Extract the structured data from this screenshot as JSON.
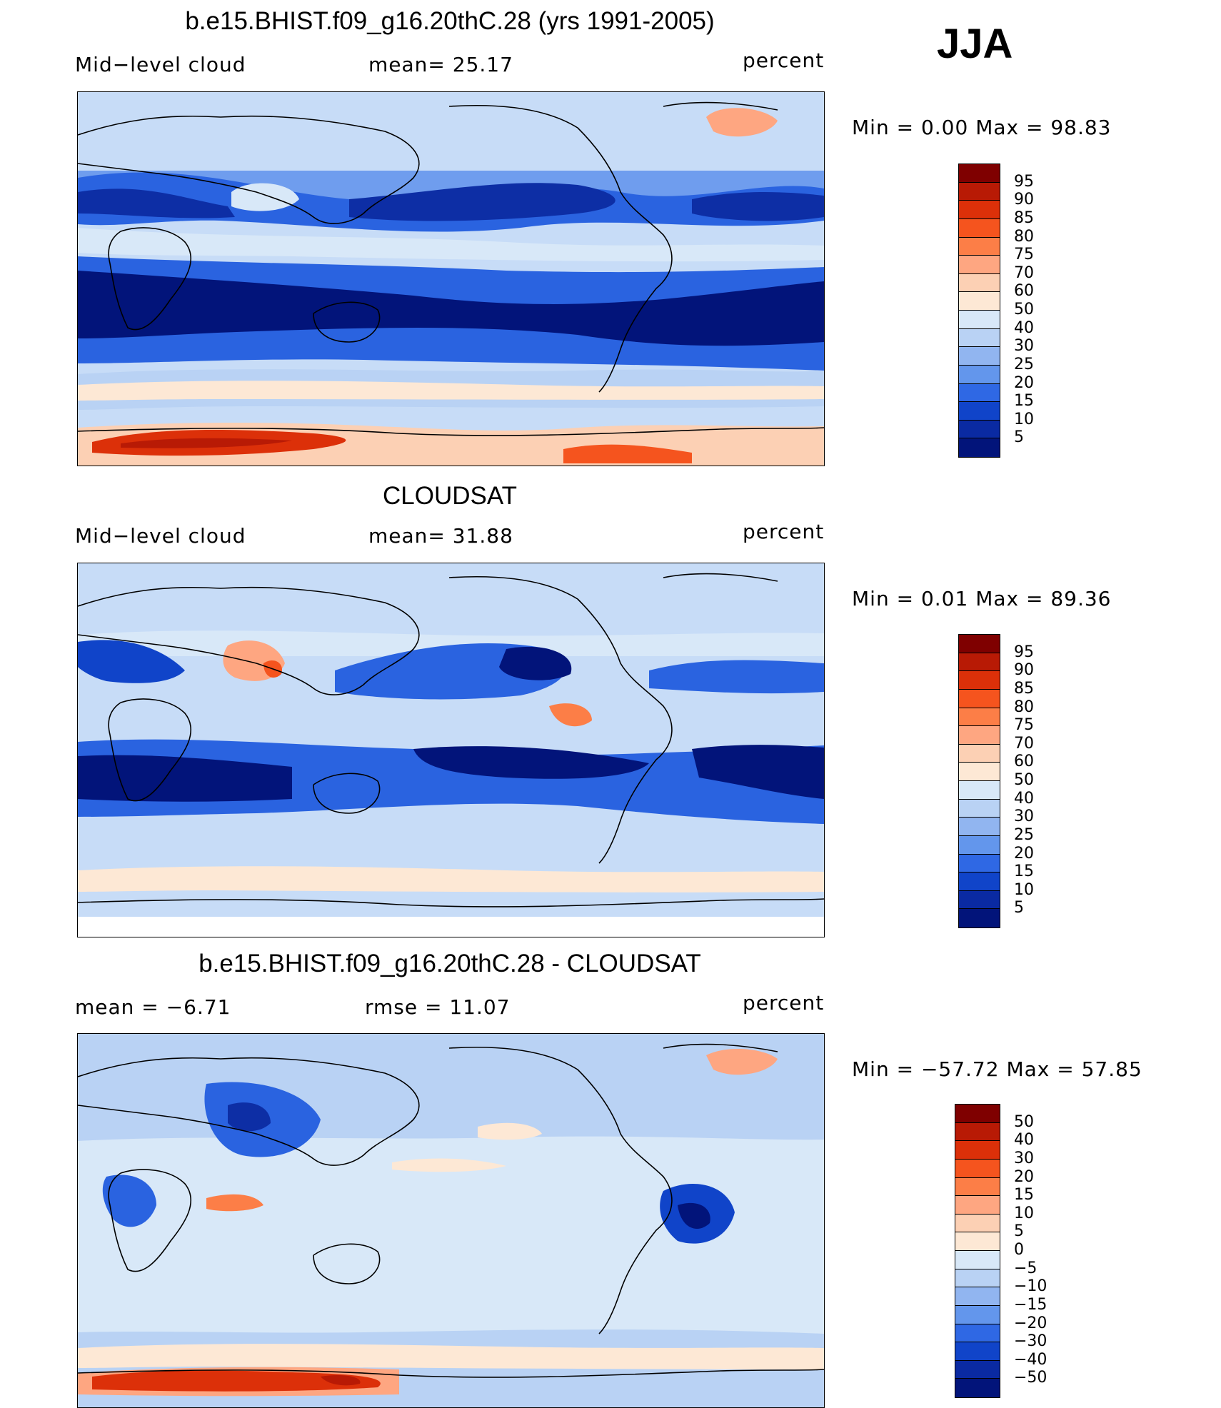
{
  "season": "JJA",
  "panels": [
    {
      "title": "b.e15.BHIST.f09_g16.20thC.28 (yrs 1991-2005)",
      "left_label": "Mid−level cloud",
      "center_label": "mean=   25.17",
      "right_label": "percent",
      "min_max": "Min  =    0.00  Max  =    98.83",
      "colorbar": {
        "levels": [
          "95",
          "90",
          "85",
          "80",
          "75",
          "70",
          "60",
          "50",
          "40",
          "30",
          "25",
          "20",
          "15",
          "10",
          "5"
        ],
        "colors": [
          "#7f0000",
          "#b81a05",
          "#dc3009",
          "#f5541e",
          "#fc7e47",
          "#fea681",
          "#fcd0b4",
          "#fde8d5",
          "#d8e8f8",
          "#b9d2f4",
          "#91b5f0",
          "#6396ec",
          "#2f68e4",
          "#1044c9",
          "#0a2aa2",
          "#02147a"
        ]
      }
    },
    {
      "title": "CLOUDSAT",
      "left_label": "Mid−level cloud",
      "center_label": "mean=   31.88",
      "right_label": "percent",
      "min_max": "Min  =    0.01  Max  =    89.36",
      "colorbar": {
        "levels": [
          "95",
          "90",
          "85",
          "80",
          "75",
          "70",
          "60",
          "50",
          "40",
          "30",
          "25",
          "20",
          "15",
          "10",
          "5"
        ],
        "colors": [
          "#7f0000",
          "#b81a05",
          "#dc3009",
          "#f5541e",
          "#fc7e47",
          "#fea681",
          "#fcd0b4",
          "#fde8d5",
          "#d8e8f8",
          "#b9d2f4",
          "#91b5f0",
          "#6396ec",
          "#2f68e4",
          "#1044c9",
          "#0a2aa2",
          "#02147a"
        ]
      }
    },
    {
      "title": "b.e15.BHIST.f09_g16.20thC.28 - CLOUDSAT",
      "left_label": "mean  =    −6.71",
      "center_label": "rmse  =    11.07",
      "right_label": "percent",
      "min_max": "Min  =  −57.72  Max  =    57.85",
      "colorbar": {
        "levels": [
          "50",
          "40",
          "30",
          "20",
          "15",
          "10",
          "5",
          "0",
          "−5",
          "−10",
          "−15",
          "−20",
          "−30",
          "−40",
          "−50"
        ],
        "colors": [
          "#7f0000",
          "#b81a05",
          "#dc3009",
          "#f5541e",
          "#fc7e47",
          "#fea681",
          "#fcd0b4",
          "#fde8d5",
          "#d8e8f8",
          "#b9d2f4",
          "#91b5f0",
          "#6396ec",
          "#2f68e4",
          "#1044c9",
          "#0a2aa2",
          "#02147a"
        ]
      }
    }
  ]
}
